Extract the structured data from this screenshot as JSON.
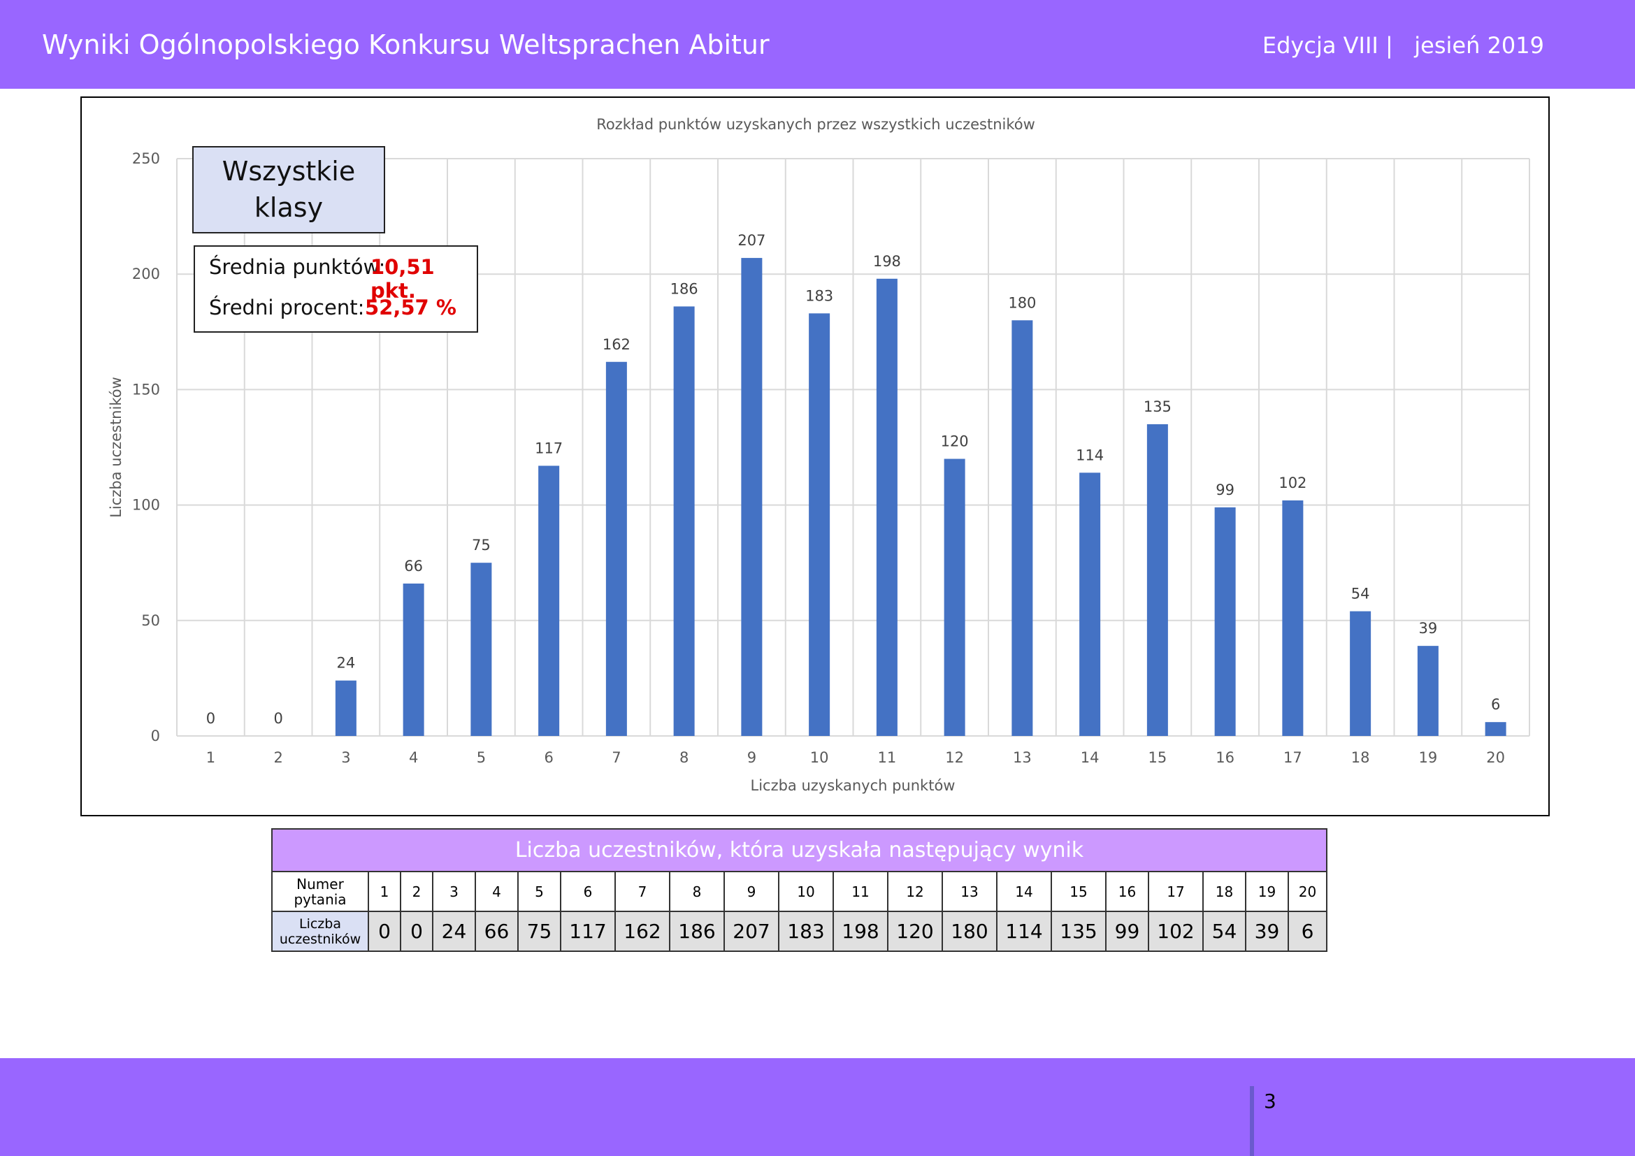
{
  "header": {
    "title": "Wyniki Ogólnopolskiego Konkursu Weltsprachen Abitur",
    "edition": "Edycja VIII |   jesień 2019"
  },
  "chart_data": {
    "type": "bar",
    "title": "Rozkład punktów uzyskanych przez wszystkich uczestników",
    "xlabel": "Liczba uzyskanych punktów",
    "ylabel": "Liczba uczestników",
    "ylim": [
      0,
      250
    ],
    "yticks": [
      "0",
      "50",
      "100",
      "150",
      "200",
      "250"
    ],
    "categories": [
      "1",
      "2",
      "3",
      "4",
      "5",
      "6",
      "7",
      "8",
      "9",
      "10",
      "11",
      "12",
      "13",
      "14",
      "15",
      "16",
      "17",
      "18",
      "19",
      "20"
    ],
    "values": [
      0,
      0,
      24,
      66,
      75,
      117,
      162,
      186,
      207,
      183,
      198,
      120,
      180,
      114,
      135,
      99,
      102,
      54,
      39,
      6
    ],
    "grid": true,
    "bar_color": "#4472c4"
  },
  "group_label": {
    "line1": "Wszystkie",
    "line2": "klasy"
  },
  "stats": {
    "avg_points_label": "Średnia punktów:",
    "avg_points_value": "10,51 pkt.",
    "avg_percent_label": "Średni procent:",
    "avg_percent_value": "52,57 %"
  },
  "table": {
    "caption": "Liczba uczestników, która uzyskała następujący wynik",
    "row1_header": [
      "Numer",
      "pytania"
    ],
    "row2_header": [
      "Liczba",
      "uczestników"
    ],
    "questions": [
      "1",
      "2",
      "3",
      "4",
      "5",
      "6",
      "7",
      "8",
      "9",
      "10",
      "11",
      "12",
      "13",
      "14",
      "15",
      "16",
      "17",
      "18",
      "19",
      "20"
    ],
    "counts": [
      "0",
      "0",
      "24",
      "66",
      "75",
      "117",
      "162",
      "186",
      "207",
      "183",
      "198",
      "120",
      "180",
      "114",
      "135",
      "99",
      "102",
      "54",
      "39",
      "6"
    ]
  },
  "footer": {
    "page_number": "3"
  }
}
